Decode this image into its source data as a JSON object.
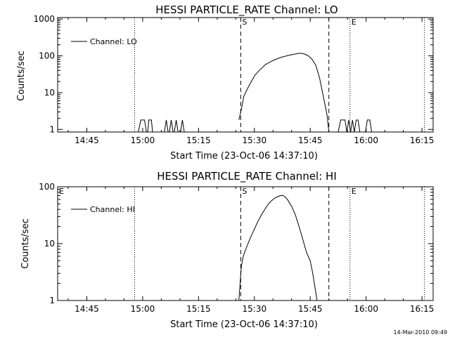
{
  "chart_data": [
    {
      "type": "line",
      "title": "HESSI PARTICLE_RATE Channel: LO",
      "xlabel": "Start Time (23-Oct-06 14:37:10)",
      "ylabel": "Counts/sec",
      "y_scale": "log",
      "xlim": [
        "14:37:10",
        "16:18:00"
      ],
      "ylim": [
        0.85,
        1100
      ],
      "x_ticks": [
        "14:45",
        "15:00",
        "15:15",
        "15:30",
        "15:45",
        "16:00",
        "16:15"
      ],
      "y_ticks": [
        {
          "value": 1,
          "label": "1"
        },
        {
          "value": 10,
          "label": "10"
        },
        {
          "value": 100,
          "label": "100"
        },
        {
          "value": 1000,
          "label": "1000"
        }
      ],
      "legend": {
        "label": "Channel: LO",
        "position": "top-left"
      },
      "markers": [
        {
          "time": "14:57:50",
          "style": "dotted",
          "label": ""
        },
        {
          "time": "15:26:20",
          "style": "dashed",
          "label": "S"
        },
        {
          "time": "15:50:00",
          "style": "dashed",
          "label": ""
        },
        {
          "time": "15:55:40",
          "style": "dotted",
          "label": "E"
        },
        {
          "time": "16:15:40",
          "style": "dotted",
          "label": ""
        }
      ],
      "series": [
        {
          "name": "Channel: LO",
          "segments": [
            {
              "x": [
                "14:58:50",
                "14:59:30",
                "15:00:30",
                "15:01:00",
                "15:01:40"
              ],
              "y": [
                0.85,
                1.8,
                1.8,
                0.85,
                0.85
              ]
            },
            {
              "x": [
                "15:01:20",
                "15:01:40",
                "15:02:20",
                "15:02:40"
              ],
              "y": [
                0.85,
                1.8,
                1.8,
                0.85
              ]
            },
            {
              "x": [
                "15:05:50",
                "15:06:20",
                "15:06:50"
              ],
              "y": [
                0.85,
                1.8,
                0.85
              ]
            },
            {
              "x": [
                "15:07:10",
                "15:07:40",
                "15:08:10"
              ],
              "y": [
                0.85,
                1.8,
                0.85
              ]
            },
            {
              "x": [
                "15:08:30",
                "15:09:00",
                "15:09:30"
              ],
              "y": [
                0.85,
                1.8,
                0.85
              ]
            },
            {
              "x": [
                "15:10:10",
                "15:10:40",
                "15:11:10"
              ],
              "y": [
                0.85,
                1.8,
                0.85
              ]
            },
            {
              "x": [
                "15:25:50",
                "15:26:30",
                "15:27:10",
                "15:28:10",
                "15:29:10",
                "15:30:10",
                "15:31:30",
                "15:33:00",
                "15:35:00",
                "15:37:00",
                "15:39:00",
                "15:40:30",
                "15:41:30",
                "15:42:30",
                "15:43:30",
                "15:44:30",
                "15:45:30",
                "15:46:30",
                "15:47:30",
                "15:48:30",
                "15:49:30",
                "15:50:00"
              ],
              "y": [
                1.8,
                3.5,
                8,
                13,
                20,
                30,
                42,
                58,
                75,
                90,
                102,
                110,
                115,
                118,
                112,
                100,
                80,
                55,
                25,
                8,
                2.5,
                0.85
              ]
            },
            {
              "x": [
                "15:52:30",
                "15:53:10",
                "15:54:20",
                "15:54:50",
                "15:55:20",
                "15:55:50",
                "15:56:20",
                "15:56:50",
                "15:57:20"
              ],
              "y": [
                0.85,
                1.8,
                1.8,
                0.85,
                1.8,
                0.85,
                1.8,
                0.85,
                1.8
              ]
            },
            {
              "x": [
                "15:57:20",
                "15:57:50",
                "15:58:20"
              ],
              "y": [
                1.8,
                1.8,
                0.85
              ]
            },
            {
              "x": [
                "15:59:50",
                "16:00:20",
                "16:01:00",
                "16:01:30"
              ],
              "y": [
                0.85,
                1.8,
                1.8,
                0.85
              ]
            }
          ]
        }
      ]
    },
    {
      "type": "line",
      "title": "HESSI PARTICLE_RATE Channel: HI",
      "xlabel": "Start Time (23-Oct-06 14:37:10)",
      "ylabel": "Counts/sec",
      "y_scale": "log",
      "xlim": [
        "14:37:10",
        "16:18:00"
      ],
      "ylim": [
        1,
        100
      ],
      "x_ticks": [
        "14:45",
        "15:00",
        "15:15",
        "15:30",
        "15:45",
        "16:00",
        "16:15"
      ],
      "y_ticks": [
        {
          "value": 1,
          "label": "1"
        },
        {
          "value": 10,
          "label": "10"
        },
        {
          "value": 100,
          "label": "100"
        }
      ],
      "legend": {
        "label": "Channel: HI",
        "position": "top-left"
      },
      "markers": [
        {
          "time": "14:37:10",
          "style": "none",
          "label": "E"
        },
        {
          "time": "14:57:50",
          "style": "dotted",
          "label": ""
        },
        {
          "time": "15:26:20",
          "style": "dashed",
          "label": "S"
        },
        {
          "time": "15:50:00",
          "style": "dashed",
          "label": ""
        },
        {
          "time": "15:55:40",
          "style": "dotted",
          "label": "E"
        },
        {
          "time": "16:15:40",
          "style": "dotted",
          "label": ""
        }
      ],
      "series": [
        {
          "name": "Channel: HI",
          "segments": [
            {
              "x": [
                "15:25:50",
                "15:26:10",
                "15:26:30",
                "15:27:00",
                "15:28:00",
                "15:29:00",
                "15:30:00",
                "15:31:00",
                "15:32:00",
                "15:33:00",
                "15:34:00",
                "15:35:00",
                "15:36:00",
                "15:37:00",
                "15:37:40",
                "15:38:20",
                "15:39:00",
                "15:40:00",
                "15:41:00",
                "15:42:00",
                "15:43:00",
                "15:44:00",
                "15:45:00",
                "15:45:40",
                "15:46:20",
                "15:46:50"
              ],
              "y": [
                1,
                2,
                4,
                6,
                9,
                13,
                18,
                25,
                33,
                42,
                52,
                60,
                66,
                70,
                70,
                66,
                58,
                45,
                32,
                20,
                12,
                7,
                5,
                3,
                1.6,
                1
              ]
            }
          ]
        }
      ]
    }
  ],
  "footer": {
    "timestamp": "14-Mar-2010 09:49"
  }
}
